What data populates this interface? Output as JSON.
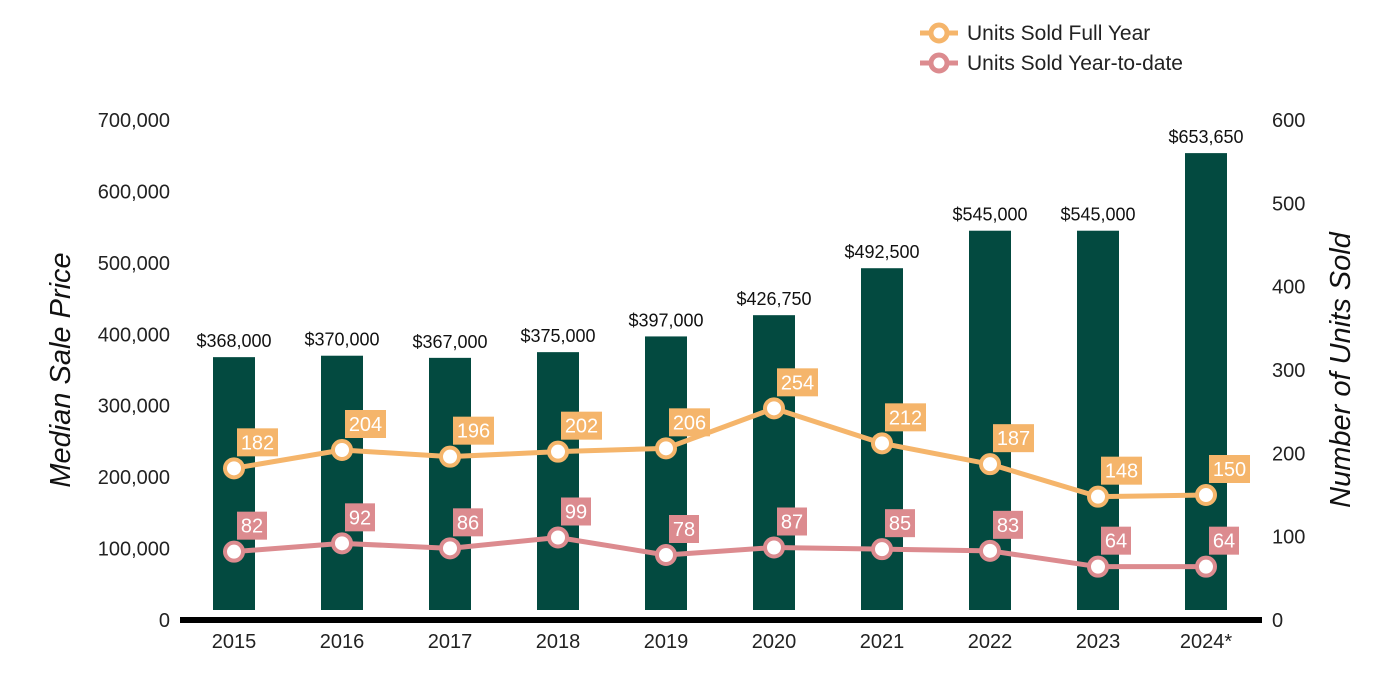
{
  "chart_data": {
    "type": "bar",
    "categories": [
      "2015",
      "2016",
      "2017",
      "2018",
      "2019",
      "2020",
      "2021",
      "2022",
      "2023",
      "2024*"
    ],
    "bar_values": [
      368000,
      370000,
      367000,
      375000,
      397000,
      426750,
      492500,
      545000,
      545000,
      653650
    ],
    "bar_labels": [
      "$368,000",
      "$370,000",
      "$367,000",
      "$375,000",
      "$397,000",
      "$426,750",
      "$492,500",
      "$545,000",
      "$545,000",
      "$653,650"
    ],
    "ylabel": "Median Sale Price",
    "y2label": "Number of Units Sold",
    "ylim": [
      0,
      700000
    ],
    "y2lim": [
      0,
      600
    ],
    "y_ticks": [
      "0",
      "100,000",
      "200,000",
      "300,000",
      "400,000",
      "500,000",
      "600,000",
      "700,000"
    ],
    "y2_ticks": [
      "0",
      "100",
      "200",
      "300",
      "400",
      "500",
      "600"
    ],
    "series": [
      {
        "name": "Units Sold Full Year",
        "axis": "right",
        "type": "line",
        "values": [
          182,
          204,
          196,
          202,
          206,
          254,
          212,
          187,
          148,
          150
        ]
      },
      {
        "name": "Units Sold Year-to-date",
        "axis": "right",
        "type": "line",
        "values": [
          82,
          92,
          86,
          99,
          78,
          87,
          85,
          83,
          64,
          64
        ]
      }
    ],
    "legend_position": "top-right",
    "grid": false
  },
  "colors": {
    "bar": "#034a40",
    "full_year": "#f5b56b",
    "ytd": "#dc8b8f",
    "axis": "#000000"
  }
}
